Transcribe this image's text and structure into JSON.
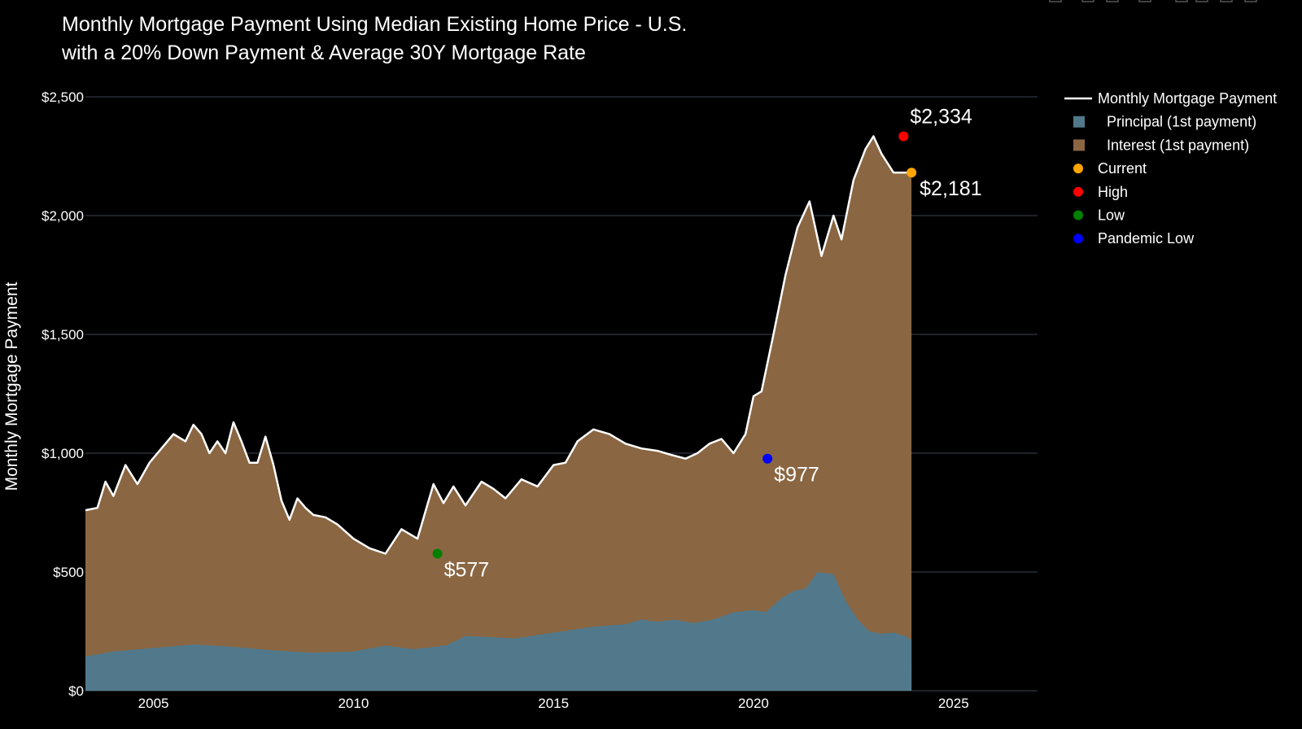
{
  "chart_data": {
    "type": "area",
    "title_lines": [
      "Monthly Mortgage Payment Using Median Existing Home Price - U.S.",
      "with a 20% Down Payment & Average 30Y Mortgage Rate"
    ],
    "ylabel": "Monthly Mortgage Payment",
    "xlabel": "",
    "xlim": [
      2003.3,
      2027.1
    ],
    "ylim": [
      0,
      2500
    ],
    "x_ticks": [
      2005,
      2010,
      2015,
      2020,
      2025
    ],
    "x_tick_labels": [
      "2005",
      "2010",
      "2015",
      "2020",
      "2025"
    ],
    "y_ticks": [
      0,
      500,
      1000,
      1500,
      2000,
      2500
    ],
    "y_tick_labels": [
      "$0",
      "$500",
      "$1,000",
      "$1,500",
      "$2,000",
      "$2,500"
    ],
    "grid": true,
    "legend_position": "right",
    "colors": {
      "background": "#000000",
      "principal": "#52798b",
      "interest": "#8a6642",
      "payment_line": "#ffffff",
      "current": "#ffa500",
      "high": "#ff0000",
      "low": "#008000",
      "pandemic_low": "#0000ff"
    },
    "legend": [
      {
        "label": "Monthly Mortgage Payment",
        "marker": "line",
        "color": "#ffffff"
      },
      {
        "label": "Principal (1st payment)",
        "marker": "square",
        "color": "#52798b"
      },
      {
        "label": "Interest (1st payment)",
        "marker": "square",
        "color": "#8a6642"
      },
      {
        "label": "Current",
        "marker": "dot",
        "color": "#ffa500"
      },
      {
        "label": "High",
        "marker": "dot",
        "color": "#ff0000"
      },
      {
        "label": "Low",
        "marker": "dot",
        "color": "#008000"
      },
      {
        "label": "Pandemic Low",
        "marker": "dot",
        "color": "#0000ff"
      }
    ],
    "series": [
      {
        "name": "Monthly Mortgage Payment",
        "x": [
          2003.3,
          2003.6,
          2003.8,
          2004.0,
          2004.3,
          2004.6,
          2004.9,
          2005.2,
          2005.5,
          2005.8,
          2006.0,
          2006.2,
          2006.4,
          2006.6,
          2006.8,
          2007.0,
          2007.2,
          2007.4,
          2007.6,
          2007.8,
          2008.0,
          2008.2,
          2008.4,
          2008.6,
          2008.8,
          2009.0,
          2009.3,
          2009.6,
          2010.0,
          2010.4,
          2010.8,
          2011.2,
          2011.6,
          2012.0,
          2012.25,
          2012.5,
          2012.8,
          2013.2,
          2013.5,
          2013.8,
          2014.2,
          2014.6,
          2015.0,
          2015.3,
          2015.6,
          2016.0,
          2016.4,
          2016.8,
          2017.2,
          2017.6,
          2017.9,
          2018.3,
          2018.6,
          2018.9,
          2019.2,
          2019.5,
          2019.8,
          2020.0,
          2020.2,
          2020.5,
          2020.8,
          2021.1,
          2021.4,
          2021.7,
          2022.0,
          2022.2,
          2022.5,
          2022.8,
          2023.0,
          2023.2,
          2023.5,
          2023.75,
          2023.95
        ],
        "values": [
          760,
          770,
          880,
          820,
          950,
          870,
          960,
          1020,
          1080,
          1050,
          1120,
          1080,
          1000,
          1050,
          1000,
          1130,
          1050,
          960,
          960,
          1070,
          950,
          800,
          720,
          810,
          770,
          740,
          730,
          700,
          640,
          600,
          577,
          680,
          640,
          870,
          790,
          860,
          780,
          880,
          850,
          810,
          890,
          860,
          950,
          960,
          1050,
          1100,
          1080,
          1040,
          1020,
          1010,
          995,
          977,
          1000,
          1040,
          1060,
          1000,
          1080,
          1240,
          1260,
          1500,
          1750,
          1950,
          2060,
          1830,
          2000,
          1900,
          2150,
          2280,
          2334,
          2260,
          2181,
          2181,
          2181
        ]
      },
      {
        "name": "Principal (1st payment)",
        "x": [
          2003.3,
          2004.0,
          2005.0,
          2006.0,
          2007.0,
          2008.0,
          2009.0,
          2010.0,
          2010.8,
          2011.5,
          2012.3,
          2012.8,
          2013.5,
          2014.0,
          2015.0,
          2016.0,
          2016.8,
          2017.2,
          2017.6,
          2018.0,
          2018.5,
          2019.0,
          2019.5,
          2020.0,
          2020.3,
          2020.7,
          2021.0,
          2021.3,
          2021.6,
          2022.0,
          2022.3,
          2022.6,
          2022.9,
          2023.2,
          2023.5,
          2023.8,
          2023.95
        ],
        "values": [
          145,
          165,
          180,
          195,
          185,
          170,
          160,
          165,
          190,
          175,
          190,
          230,
          225,
          220,
          245,
          270,
          280,
          300,
          290,
          300,
          285,
          300,
          330,
          340,
          330,
          390,
          420,
          430,
          500,
          490,
          380,
          300,
          250,
          240,
          245,
          230,
          215
        ]
      },
      {
        "name": "Interest (1st payment)",
        "x": [
          2003.3,
          2023.95
        ],
        "values": [
          615,
          1966
        ]
      }
    ],
    "markers": [
      {
        "name": "High",
        "x": 2023.75,
        "y": 2334,
        "label": "$2,334",
        "color": "#ff0000"
      },
      {
        "name": "Current",
        "x": 2023.95,
        "y": 2181,
        "label": "$2,181",
        "color": "#ffa500"
      },
      {
        "name": "Low",
        "x": 2012.1,
        "y": 577,
        "label": "$577",
        "color": "#008000"
      },
      {
        "name": "Pandemic Low",
        "x": 2020.35,
        "y": 977,
        "label": "$977",
        "color": "#0000ff"
      }
    ]
  }
}
